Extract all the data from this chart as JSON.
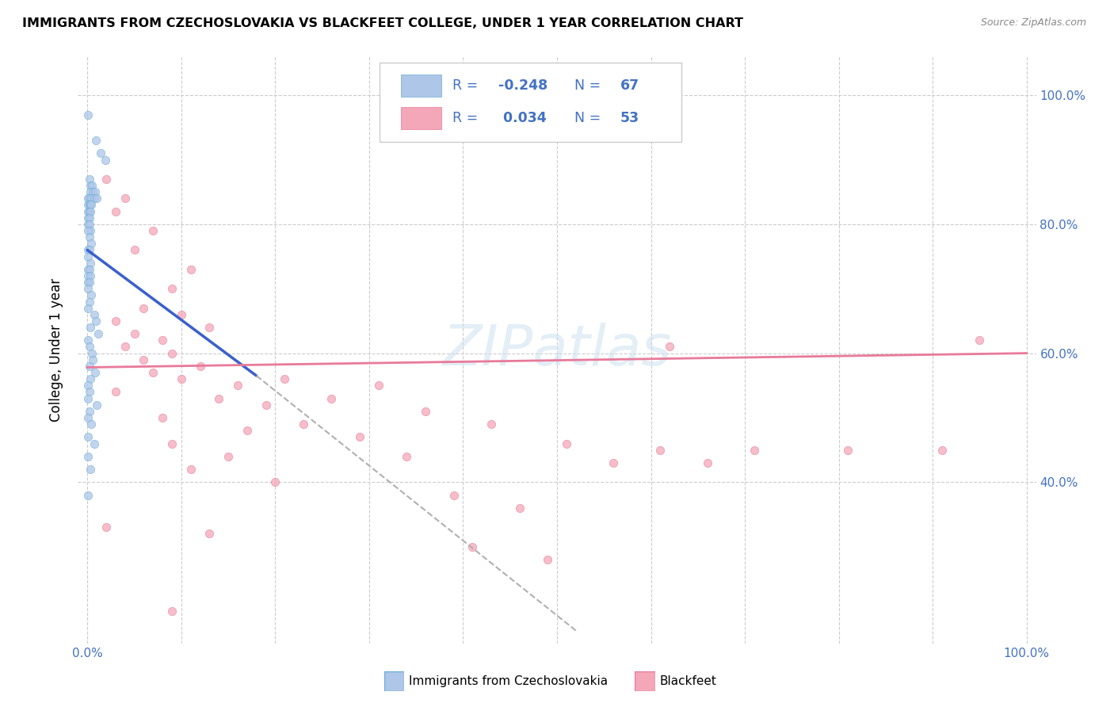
{
  "title": "IMMIGRANTS FROM CZECHOSLOVAKIA VS BLACKFEET COLLEGE, UNDER 1 YEAR CORRELATION CHART",
  "source": "Source: ZipAtlas.com",
  "ylabel": "College, Under 1 year",
  "watermark": "ZIPatlas",
  "blue_scatter": [
    [
      0.001,
      0.97
    ],
    [
      0.009,
      0.93
    ],
    [
      0.014,
      0.91
    ],
    [
      0.019,
      0.9
    ],
    [
      0.002,
      0.87
    ],
    [
      0.003,
      0.86
    ],
    [
      0.005,
      0.86
    ],
    [
      0.003,
      0.85
    ],
    [
      0.006,
      0.85
    ],
    [
      0.008,
      0.85
    ],
    [
      0.001,
      0.84
    ],
    [
      0.002,
      0.84
    ],
    [
      0.004,
      0.84
    ],
    [
      0.007,
      0.84
    ],
    [
      0.01,
      0.84
    ],
    [
      0.001,
      0.83
    ],
    [
      0.002,
      0.83
    ],
    [
      0.003,
      0.83
    ],
    [
      0.004,
      0.83
    ],
    [
      0.001,
      0.82
    ],
    [
      0.002,
      0.82
    ],
    [
      0.003,
      0.82
    ],
    [
      0.001,
      0.81
    ],
    [
      0.002,
      0.81
    ],
    [
      0.001,
      0.8
    ],
    [
      0.002,
      0.8
    ],
    [
      0.003,
      0.79
    ],
    [
      0.001,
      0.79
    ],
    [
      0.002,
      0.78
    ],
    [
      0.004,
      0.77
    ],
    [
      0.001,
      0.76
    ],
    [
      0.002,
      0.76
    ],
    [
      0.001,
      0.75
    ],
    [
      0.003,
      0.74
    ],
    [
      0.001,
      0.73
    ],
    [
      0.002,
      0.73
    ],
    [
      0.001,
      0.72
    ],
    [
      0.003,
      0.72
    ],
    [
      0.001,
      0.71
    ],
    [
      0.002,
      0.71
    ],
    [
      0.001,
      0.7
    ],
    [
      0.004,
      0.69
    ],
    [
      0.002,
      0.68
    ],
    [
      0.001,
      0.67
    ],
    [
      0.007,
      0.66
    ],
    [
      0.009,
      0.65
    ],
    [
      0.003,
      0.64
    ],
    [
      0.012,
      0.63
    ],
    [
      0.001,
      0.62
    ],
    [
      0.002,
      0.61
    ],
    [
      0.005,
      0.6
    ],
    [
      0.006,
      0.59
    ],
    [
      0.002,
      0.58
    ],
    [
      0.008,
      0.57
    ],
    [
      0.003,
      0.56
    ],
    [
      0.001,
      0.55
    ],
    [
      0.002,
      0.54
    ],
    [
      0.001,
      0.53
    ],
    [
      0.01,
      0.52
    ],
    [
      0.002,
      0.51
    ],
    [
      0.001,
      0.5
    ],
    [
      0.004,
      0.49
    ],
    [
      0.001,
      0.47
    ],
    [
      0.007,
      0.46
    ],
    [
      0.001,
      0.44
    ],
    [
      0.003,
      0.42
    ],
    [
      0.001,
      0.38
    ]
  ],
  "pink_scatter": [
    [
      0.02,
      0.87
    ],
    [
      0.04,
      0.84
    ],
    [
      0.03,
      0.82
    ],
    [
      0.07,
      0.79
    ],
    [
      0.05,
      0.76
    ],
    [
      0.11,
      0.73
    ],
    [
      0.09,
      0.7
    ],
    [
      0.06,
      0.67
    ],
    [
      0.1,
      0.66
    ],
    [
      0.03,
      0.65
    ],
    [
      0.13,
      0.64
    ],
    [
      0.05,
      0.63
    ],
    [
      0.08,
      0.62
    ],
    [
      0.04,
      0.61
    ],
    [
      0.09,
      0.6
    ],
    [
      0.06,
      0.59
    ],
    [
      0.12,
      0.58
    ],
    [
      0.07,
      0.57
    ],
    [
      0.1,
      0.56
    ],
    [
      0.21,
      0.56
    ],
    [
      0.16,
      0.55
    ],
    [
      0.31,
      0.55
    ],
    [
      0.03,
      0.54
    ],
    [
      0.14,
      0.53
    ],
    [
      0.26,
      0.53
    ],
    [
      0.19,
      0.52
    ],
    [
      0.36,
      0.51
    ],
    [
      0.08,
      0.5
    ],
    [
      0.23,
      0.49
    ],
    [
      0.43,
      0.49
    ],
    [
      0.17,
      0.48
    ],
    [
      0.29,
      0.47
    ],
    [
      0.09,
      0.46
    ],
    [
      0.51,
      0.46
    ],
    [
      0.61,
      0.45
    ],
    [
      0.71,
      0.45
    ],
    [
      0.81,
      0.45
    ],
    [
      0.91,
      0.45
    ],
    [
      0.15,
      0.44
    ],
    [
      0.34,
      0.44
    ],
    [
      0.56,
      0.43
    ],
    [
      0.66,
      0.43
    ],
    [
      0.11,
      0.42
    ],
    [
      0.2,
      0.4
    ],
    [
      0.39,
      0.38
    ],
    [
      0.46,
      0.36
    ],
    [
      0.02,
      0.33
    ],
    [
      0.13,
      0.32
    ],
    [
      0.41,
      0.3
    ],
    [
      0.49,
      0.28
    ],
    [
      0.09,
      0.2
    ],
    [
      0.62,
      0.61
    ],
    [
      0.95,
      0.62
    ]
  ],
  "blue_line_solid": {
    "x": [
      0.0,
      0.18
    ],
    "y": [
      0.76,
      0.565
    ]
  },
  "blue_line_dashed": {
    "x": [
      0.18,
      0.52
    ],
    "y": [
      0.565,
      0.17
    ]
  },
  "pink_line": {
    "x": [
      0.0,
      1.0
    ],
    "y": [
      0.578,
      0.6
    ]
  },
  "xlim": [
    -0.01,
    1.01
  ],
  "ylim": [
    0.15,
    1.06
  ],
  "yticks": [
    0.4,
    0.6,
    0.8,
    1.0
  ],
  "ytick_labels": [
    "40.0%",
    "60.0%",
    "80.0%",
    "100.0%"
  ],
  "xtick_labels_show": [
    "0.0%",
    "100.0%"
  ],
  "bg_color": "#ffffff",
  "blue_scatter_color": "#aec6e8",
  "blue_scatter_edge": "#6baed6",
  "pink_scatter_color": "#f4a7b9",
  "pink_scatter_edge": "#e87a9a",
  "blue_line_color": "#3a5fcd",
  "pink_line_color": "#e87a9a",
  "dashed_line_color": "#b0b0b0",
  "axis_label_color": "#4472c4",
  "scatter_size": 55,
  "scatter_alpha": 0.75,
  "legend_r1": "R = -0.248",
  "legend_n1": "N = 67",
  "legend_r2": "R =  0.034",
  "legend_n2": "N = 53"
}
